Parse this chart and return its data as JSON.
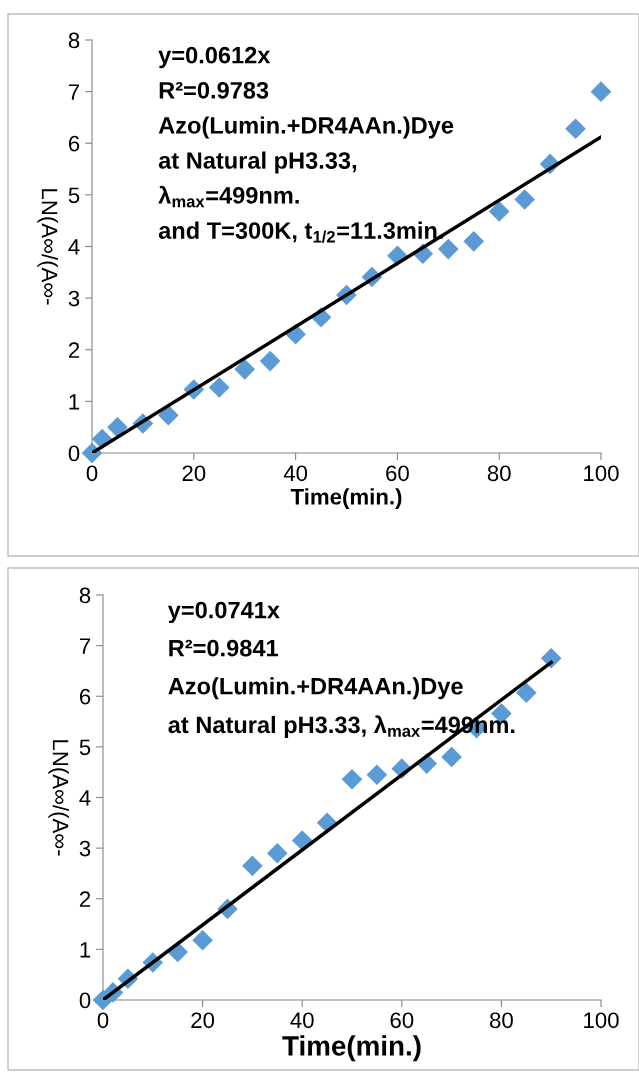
{
  "chart_data": [
    {
      "type": "scatter",
      "xlabel": "Time(min.)",
      "ylabel": "LN(A∞/(A∞-",
      "xlim": [
        0,
        100
      ],
      "ylim": [
        0,
        8
      ],
      "xticks": [
        0,
        20,
        40,
        60,
        80,
        100
      ],
      "yticks": [
        0,
        1,
        2,
        3,
        4,
        5,
        6,
        7,
        8
      ],
      "grid": false,
      "legend": false,
      "annotations": [
        "y=0.0612x",
        "R²=0.9783",
        "Azo(Lumin.+DR4AAn.)Dye",
        "at Natural pH3.33,",
        "λ$_{max}$=499nm.",
        "and T=300K, t$_{1/2}$=11.3min."
      ],
      "series": [
        {
          "marker": "diamond",
          "color": "#5b9bd5",
          "x": [
            0,
            2,
            5,
            10,
            15,
            20,
            25,
            30,
            35,
            40,
            45,
            50,
            55,
            60,
            65,
            70,
            75,
            80,
            85,
            90,
            95,
            100
          ],
          "values": [
            0,
            0.27,
            0.5,
            0.57,
            0.73,
            1.23,
            1.27,
            1.62,
            1.78,
            2.3,
            2.63,
            3.06,
            3.41,
            3.82,
            3.86,
            3.95,
            4.1,
            4.68,
            4.91,
            5.6,
            6.28,
            7.0
          ]
        },
        {
          "type": "line",
          "marker": "none",
          "line_style": "solid",
          "color": "#000000",
          "x": [
            0,
            100
          ],
          "values": [
            0,
            6.12
          ]
        }
      ]
    },
    {
      "type": "scatter",
      "xlabel": "Time(min.)",
      "ylabel": "LN(A∞/(A∞-",
      "xlim": [
        0,
        100
      ],
      "ylim": [
        0,
        8
      ],
      "xticks": [
        0,
        20,
        40,
        60,
        80,
        100
      ],
      "yticks": [
        0,
        1,
        2,
        3,
        4,
        5,
        6,
        7,
        8
      ],
      "grid": false,
      "legend": false,
      "annotations": [
        "y=0.0741x",
        "R²=0.9841",
        "Azo(Lumin.+DR4AAn.)Dye",
        "at Natural pH3.33, λ$_{max}$=499nm."
      ],
      "series": [
        {
          "marker": "diamond",
          "color": "#5b9bd5",
          "x": [
            0,
            2,
            5,
            10,
            15,
            20,
            25,
            30,
            35,
            40,
            45,
            50,
            55,
            60,
            65,
            70,
            75,
            80,
            85,
            90
          ],
          "values": [
            0,
            0.15,
            0.42,
            0.74,
            0.95,
            1.18,
            1.8,
            2.65,
            2.9,
            3.15,
            3.5,
            4.36,
            4.45,
            4.57,
            4.67,
            4.8,
            5.37,
            5.66,
            6.07,
            6.75
          ]
        },
        {
          "type": "line",
          "marker": "none",
          "line_style": "solid",
          "color": "#000000",
          "x": [
            0,
            90
          ],
          "values": [
            0,
            6.67
          ]
        }
      ]
    }
  ]
}
